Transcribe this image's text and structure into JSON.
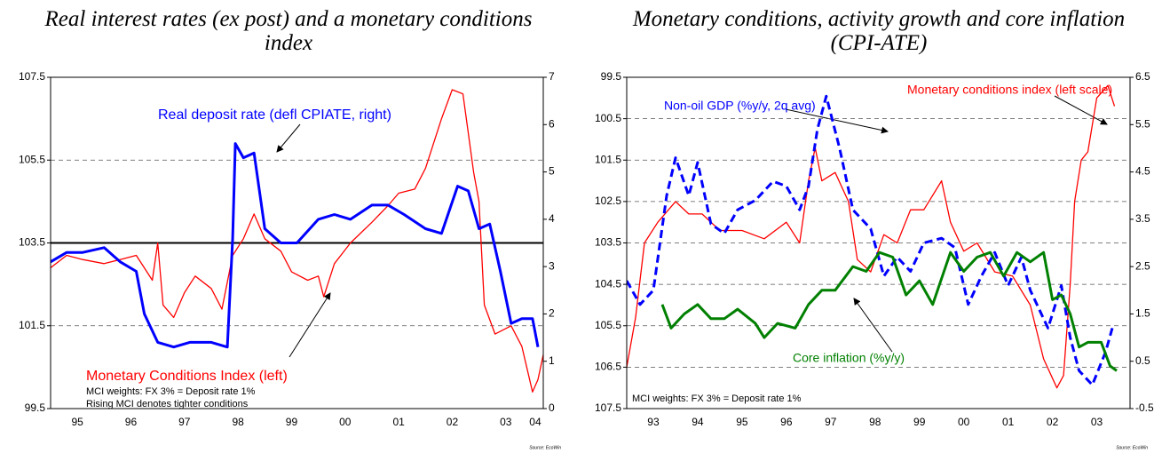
{
  "chart_data": [
    {
      "type": "line",
      "title": "Real interest rates (ex post) and a monetary conditions index",
      "xlim": [
        1995,
        2004.2
      ],
      "xticks": [
        {
          "value": 1995.5,
          "label": "95"
        },
        {
          "value": 1996.5,
          "label": "96"
        },
        {
          "value": 1997.5,
          "label": "97"
        },
        {
          "value": 1998.5,
          "label": "98"
        },
        {
          "value": 1999.5,
          "label": "99"
        },
        {
          "value": 2000.5,
          "label": "00"
        },
        {
          "value": 2001.5,
          "label": "01"
        },
        {
          "value": 2002.5,
          "label": "02"
        },
        {
          "value": 2003.5,
          "label": "03"
        },
        {
          "value": 2004.05,
          "label": "04"
        }
      ],
      "ylim": [
        99.5,
        107.5
      ],
      "yticks": [
        99.5,
        101.5,
        103.5,
        105.5,
        107.5
      ],
      "y2lim": [
        0,
        7
      ],
      "y2ticks": [
        0,
        1,
        2,
        3,
        4,
        5,
        6,
        7
      ],
      "grid": true,
      "reference_line": 103.5,
      "annotations": [
        "MCI weights: FX 3% = Deposit rate 1%",
        "Rising MCI denotes tighter conditions"
      ],
      "source": "Source: EcoWin",
      "series": [
        {
          "name": "Monetary Conditions Index (left)",
          "color": "#ff0000",
          "width": 1.3,
          "dashed": false,
          "x": [
            1995.0,
            1995.3,
            1995.6,
            1996.0,
            1996.3,
            1996.6,
            1996.9,
            1997.0,
            1997.1,
            1997.3,
            1997.5,
            1997.7,
            1998.0,
            1998.2,
            1998.4,
            1998.6,
            1998.8,
            1999.0,
            1999.3,
            1999.5,
            1999.8,
            2000.0,
            2000.1,
            2000.3,
            2000.6,
            2001.0,
            2001.3,
            2001.5,
            2001.8,
            2002.0,
            2002.3,
            2002.5,
            2002.7,
            2002.9,
            2003.0,
            2003.1,
            2003.3,
            2003.6,
            2003.8,
            2004.0,
            2004.1,
            2004.2
          ],
          "values": [
            102.9,
            103.2,
            103.1,
            103.0,
            103.1,
            103.2,
            102.6,
            103.5,
            102.0,
            101.7,
            102.3,
            102.7,
            102.4,
            101.9,
            103.2,
            103.6,
            104.2,
            103.6,
            103.3,
            102.8,
            102.6,
            102.7,
            102.2,
            103.0,
            103.5,
            104.0,
            104.4,
            104.7,
            104.8,
            105.3,
            106.5,
            107.2,
            107.1,
            105.2,
            104.5,
            102.0,
            101.3,
            101.5,
            101.0,
            99.9,
            100.2,
            100.8
          ]
        },
        {
          "name": "Real deposit rate (defl CPIATE, right)",
          "color": "#0000ff",
          "width": 3,
          "dashed": false,
          "axis": "y2",
          "x": [
            1995.0,
            1995.3,
            1995.6,
            1996.0,
            1996.3,
            1996.6,
            1996.75,
            1997.0,
            1997.3,
            1997.6,
            1998.0,
            1998.3,
            1998.4,
            1998.45,
            1998.6,
            1998.8,
            1999.0,
            1999.3,
            1999.6,
            2000.0,
            2000.3,
            2000.6,
            2001.0,
            2001.3,
            2001.6,
            2002.0,
            2002.3,
            2002.6,
            2002.8,
            2003.0,
            2003.2,
            2003.4,
            2003.6,
            2003.8,
            2004.0,
            2004.1
          ],
          "values": [
            3.1,
            3.3,
            3.3,
            3.4,
            3.1,
            2.9,
            2.0,
            1.4,
            1.3,
            1.4,
            1.4,
            1.3,
            3.6,
            5.6,
            5.3,
            5.4,
            3.8,
            3.5,
            3.5,
            4.0,
            4.1,
            4.0,
            4.3,
            4.3,
            4.1,
            3.8,
            3.7,
            4.7,
            4.6,
            3.8,
            3.9,
            2.9,
            1.8,
            1.9,
            1.9,
            1.3
          ]
        }
      ]
    },
    {
      "type": "line",
      "title": "Monetary conditions, activity growth and core inflation (CPI-ATE)",
      "xlim": [
        1992.9,
        2004.25
      ],
      "xticks": [
        {
          "value": 1993.5,
          "label": "93"
        },
        {
          "value": 1994.5,
          "label": "94"
        },
        {
          "value": 1995.5,
          "label": "95"
        },
        {
          "value": 1996.5,
          "label": "96"
        },
        {
          "value": 1997.5,
          "label": "97"
        },
        {
          "value": 1998.5,
          "label": "98"
        },
        {
          "value": 1999.5,
          "label": "99"
        },
        {
          "value": 2000.5,
          "label": "00"
        },
        {
          "value": 2001.5,
          "label": "01"
        },
        {
          "value": 2002.5,
          "label": "02"
        },
        {
          "value": 2003.5,
          "label": "03"
        }
      ],
      "ylim": [
        107.5,
        99.5
      ],
      "yticks": [
        99.5,
        100.5,
        101.5,
        102.5,
        103.5,
        104.5,
        105.5,
        106.5,
        107.5
      ],
      "y2lim": [
        -0.5,
        6.5
      ],
      "y2ticks": [
        -0.5,
        0.5,
        1.5,
        2.5,
        3.5,
        4.5,
        5.5,
        6.5
      ],
      "grid": true,
      "annotations": [
        "MCI weights: FX 3% = Deposit rate 1%"
      ],
      "source": "Source: EcoWin",
      "series": [
        {
          "name": "Monetary conditions index (left scale)",
          "color": "#ff0000",
          "width": 1.3,
          "dashed": false,
          "x": [
            1992.9,
            1993.1,
            1993.3,
            1993.6,
            1994.0,
            1994.3,
            1994.6,
            1995.0,
            1995.5,
            1996.0,
            1996.5,
            1996.8,
            1997.0,
            1997.15,
            1997.3,
            1997.6,
            1997.9,
            1998.1,
            1998.4,
            1998.7,
            1999.0,
            1999.3,
            1999.6,
            2000.0,
            2000.2,
            2000.5,
            2000.8,
            2001.2,
            2001.6,
            2002.0,
            2002.3,
            2002.6,
            2002.75,
            2002.9,
            2003.0,
            2003.15,
            2003.3,
            2003.5,
            2003.75,
            2003.9
          ],
          "values": [
            106.5,
            105.3,
            103.5,
            103.0,
            102.5,
            102.8,
            102.8,
            103.2,
            103.2,
            103.4,
            103.0,
            103.5,
            102.0,
            101.2,
            102.0,
            101.8,
            102.5,
            103.9,
            104.2,
            103.3,
            103.5,
            102.7,
            102.7,
            102.0,
            103.0,
            103.7,
            103.5,
            104.2,
            104.3,
            105.0,
            106.3,
            107.0,
            106.7,
            104.5,
            102.5,
            101.5,
            101.3,
            100.0,
            99.7,
            100.2
          ]
        },
        {
          "name": "Non-oil GDP (%y/y, 2q avg)",
          "color": "#0000ff",
          "width": 3,
          "dashed": true,
          "axis": "y2",
          "x": [
            1992.9,
            1993.2,
            1993.5,
            1993.8,
            1994.0,
            1994.3,
            1994.5,
            1994.8,
            1995.1,
            1995.4,
            1995.8,
            1996.2,
            1996.5,
            1996.8,
            1997.0,
            1997.2,
            1997.4,
            1997.7,
            1998.0,
            1998.4,
            1998.7,
            1999.0,
            1999.3,
            1999.6,
            2000.0,
            2000.3,
            2000.6,
            2000.9,
            2001.2,
            2001.5,
            2001.8,
            2002.0,
            2002.4,
            2002.7,
            2002.9,
            2003.1,
            2003.4,
            2003.7,
            2003.85
          ],
          "values": [
            2.2,
            1.7,
            2.0,
            4.0,
            4.8,
            4.0,
            4.7,
            3.4,
            3.2,
            3.7,
            3.9,
            4.3,
            4.2,
            3.7,
            4.2,
            5.4,
            6.1,
            5.0,
            3.7,
            3.3,
            2.3,
            2.7,
            2.4,
            3.0,
            3.1,
            2.9,
            1.7,
            2.3,
            2.8,
            2.1,
            2.7,
            2.0,
            1.2,
            2.1,
            1.0,
            0.3,
            0.0,
            0.7,
            1.2
          ]
        },
        {
          "name": "Core inflation (%y/y)",
          "color": "#008000",
          "width": 3,
          "dashed": false,
          "axis": "y2",
          "x": [
            1993.7,
            1993.9,
            1994.2,
            1994.5,
            1994.8,
            1995.1,
            1995.4,
            1995.8,
            1996.0,
            1996.3,
            1996.7,
            1997.0,
            1997.3,
            1997.6,
            1998.0,
            1998.3,
            1998.6,
            1998.9,
            1999.2,
            1999.5,
            1999.8,
            2000.2,
            2000.5,
            2000.8,
            2001.1,
            2001.4,
            2001.7,
            2002.0,
            2002.3,
            2002.5,
            2002.7,
            2002.9,
            2003.1,
            2003.3,
            2003.6,
            2003.8,
            2003.95
          ],
          "values": [
            1.7,
            1.2,
            1.5,
            1.7,
            1.4,
            1.4,
            1.6,
            1.3,
            1.0,
            1.3,
            1.2,
            1.7,
            2.0,
            2.0,
            2.5,
            2.4,
            2.8,
            2.7,
            1.9,
            2.2,
            1.7,
            2.8,
            2.4,
            2.7,
            2.8,
            2.3,
            2.8,
            2.6,
            2.8,
            1.8,
            1.9,
            1.5,
            0.8,
            0.9,
            0.9,
            0.4,
            0.3
          ]
        }
      ]
    }
  ]
}
